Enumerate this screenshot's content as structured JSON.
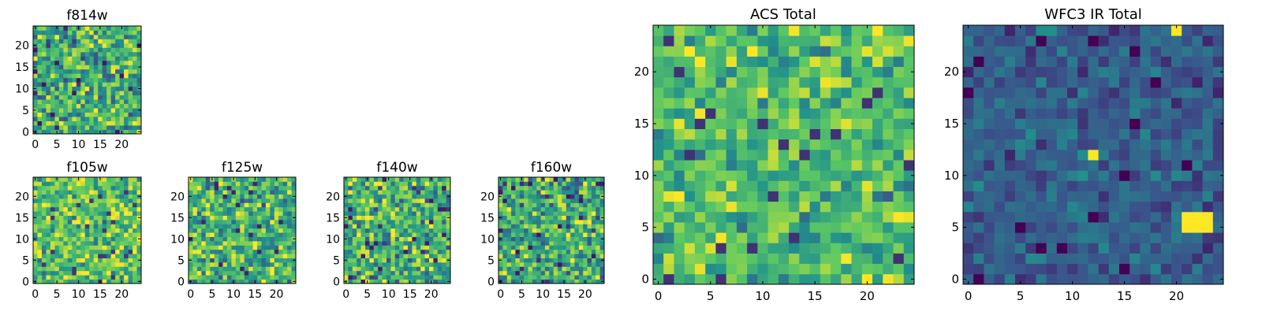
{
  "colors": {
    "low": "#440154",
    "midlow": "#3b528b",
    "mid": "#21918c",
    "midhigh": "#5ec962",
    "high": "#fde725",
    "axis": "#000000",
    "background": "#ffffff"
  },
  "chart_data": [
    {
      "type": "heatmap",
      "title": "f814w",
      "grid_size": [
        25,
        25
      ],
      "x_ticks": [
        "0",
        "5",
        "10",
        "15",
        "20"
      ],
      "y_ticks": [
        "0",
        "5",
        "10",
        "15",
        "20"
      ],
      "xlim": [
        -0.5,
        24.5
      ],
      "ylim": [
        -0.5,
        24.5
      ],
      "value_range": [
        0,
        1
      ],
      "mean": 0.62,
      "spread": 0.24,
      "seed": 11
    },
    {
      "type": "heatmap",
      "title": "f105w",
      "grid_size": [
        25,
        25
      ],
      "x_ticks": [
        "0",
        "5",
        "10",
        "15",
        "20"
      ],
      "y_ticks": [
        "0",
        "5",
        "10",
        "15",
        "20"
      ],
      "xlim": [
        -0.5,
        24.5
      ],
      "ylim": [
        -0.5,
        24.5
      ],
      "value_range": [
        0,
        1
      ],
      "mean": 0.72,
      "spread": 0.2,
      "seed": 23
    },
    {
      "type": "heatmap",
      "title": "f125w",
      "grid_size": [
        25,
        25
      ],
      "x_ticks": [
        "0",
        "5",
        "10",
        "15",
        "20"
      ],
      "y_ticks": [
        "0",
        "5",
        "10",
        "15",
        "20"
      ],
      "xlim": [
        -0.5,
        24.5
      ],
      "ylim": [
        -0.5,
        24.5
      ],
      "value_range": [
        0,
        1
      ],
      "mean": 0.66,
      "spread": 0.22,
      "seed": 37
    },
    {
      "type": "heatmap",
      "title": "f140w",
      "grid_size": [
        25,
        25
      ],
      "x_ticks": [
        "0",
        "5",
        "10",
        "15",
        "20"
      ],
      "y_ticks": [
        "0",
        "5",
        "10",
        "15",
        "20"
      ],
      "xlim": [
        -0.5,
        24.5
      ],
      "ylim": [
        -0.5,
        24.5
      ],
      "value_range": [
        0,
        1
      ],
      "mean": 0.64,
      "spread": 0.24,
      "seed": 41
    },
    {
      "type": "heatmap",
      "title": "f160w",
      "grid_size": [
        25,
        25
      ],
      "x_ticks": [
        "0",
        "5",
        "10",
        "15",
        "20"
      ],
      "y_ticks": [
        "0",
        "5",
        "10",
        "15",
        "20"
      ],
      "xlim": [
        -0.5,
        24.5
      ],
      "ylim": [
        -0.5,
        24.5
      ],
      "value_range": [
        0,
        1
      ],
      "mean": 0.62,
      "spread": 0.25,
      "seed": 53
    },
    {
      "type": "heatmap",
      "title": "ACS Total",
      "grid_size": [
        25,
        25
      ],
      "x_ticks": [
        "0",
        "5",
        "10",
        "15",
        "20"
      ],
      "y_ticks": [
        "0",
        "5",
        "10",
        "15",
        "20"
      ],
      "xlim": [
        -0.5,
        24.5
      ],
      "ylim": [
        -0.5,
        24.5
      ],
      "value_range": [
        0,
        1
      ],
      "mean": 0.7,
      "spread": 0.18,
      "seed": 67
    },
    {
      "type": "heatmap",
      "title": "WFC3 IR Total",
      "grid_size": [
        25,
        25
      ],
      "x_ticks": [
        "0",
        "5",
        "10",
        "15",
        "20"
      ],
      "y_ticks": [
        "0",
        "5",
        "10",
        "15",
        "20"
      ],
      "xlim": [
        -0.5,
        24.5
      ],
      "ylim": [
        -0.5,
        24.5
      ],
      "value_range": [
        0,
        1
      ],
      "mean": 0.3,
      "spread": 0.1,
      "seed": 79,
      "bright_spots": [
        [
          12,
          12
        ],
        [
          21,
          5
        ],
        [
          22,
          5
        ],
        [
          23,
          5
        ],
        [
          21,
          6
        ],
        [
          22,
          6
        ],
        [
          23,
          6
        ],
        [
          20,
          24
        ]
      ]
    }
  ]
}
